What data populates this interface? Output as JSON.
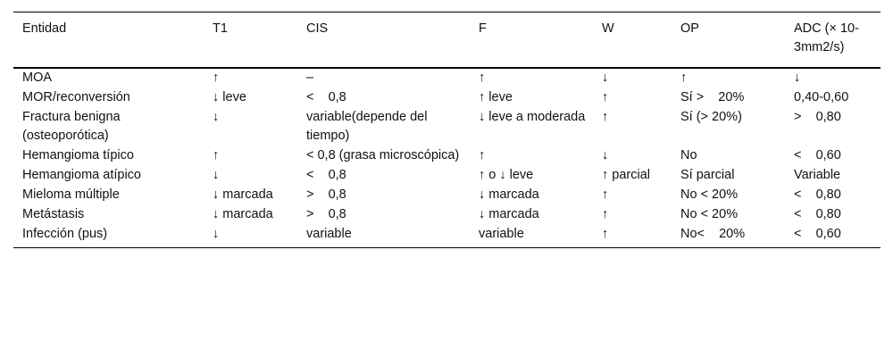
{
  "table": {
    "headers": [
      "Entidad",
      "T1",
      "CIS",
      "F",
      "W",
      "OP",
      "ADC (× 10-3mm2/s)"
    ],
    "rows": [
      [
        "MOA",
        "↑",
        "–",
        "↑",
        "↓",
        "↑",
        "↓"
      ],
      [
        "MOR/reconversión",
        "↓ leve",
        "<    0,8",
        "↑ leve",
        "↑",
        "Sí >    20%",
        "0,40-0,60"
      ],
      [
        "Fractura benigna (osteoporótica)",
        "↓",
        "variable(depende del tiempo)",
        "↓ leve a moderada",
        "↑",
        "Sí (>    20%)",
        ">    0,80"
      ],
      [
        "Hemangioma típico",
        "↑",
        "<    0,8 (grasa microscópica)",
        "↑",
        "↓",
        "No",
        "<    0,60"
      ],
      [
        "Hemangioma atípico",
        "↓",
        "<    0,8",
        "↑ o ↓ leve",
        "↑ parcial",
        "Sí parcial",
        "Variable"
      ],
      [
        "Mieloma múltiple",
        "↓ marcada",
        ">    0,8",
        "↓ marcada",
        "↑",
        "No <    20%",
        "<    0,80"
      ],
      [
        "Metástasis",
        "↓ marcada",
        ">    0,8",
        "↓ marcada",
        "↑",
        "No <    20%",
        "<    0,80"
      ],
      [
        "Infección (pus)",
        "↓",
        "variable",
        "variable",
        "↑",
        "No<    20%",
        "<    0,60"
      ]
    ]
  }
}
